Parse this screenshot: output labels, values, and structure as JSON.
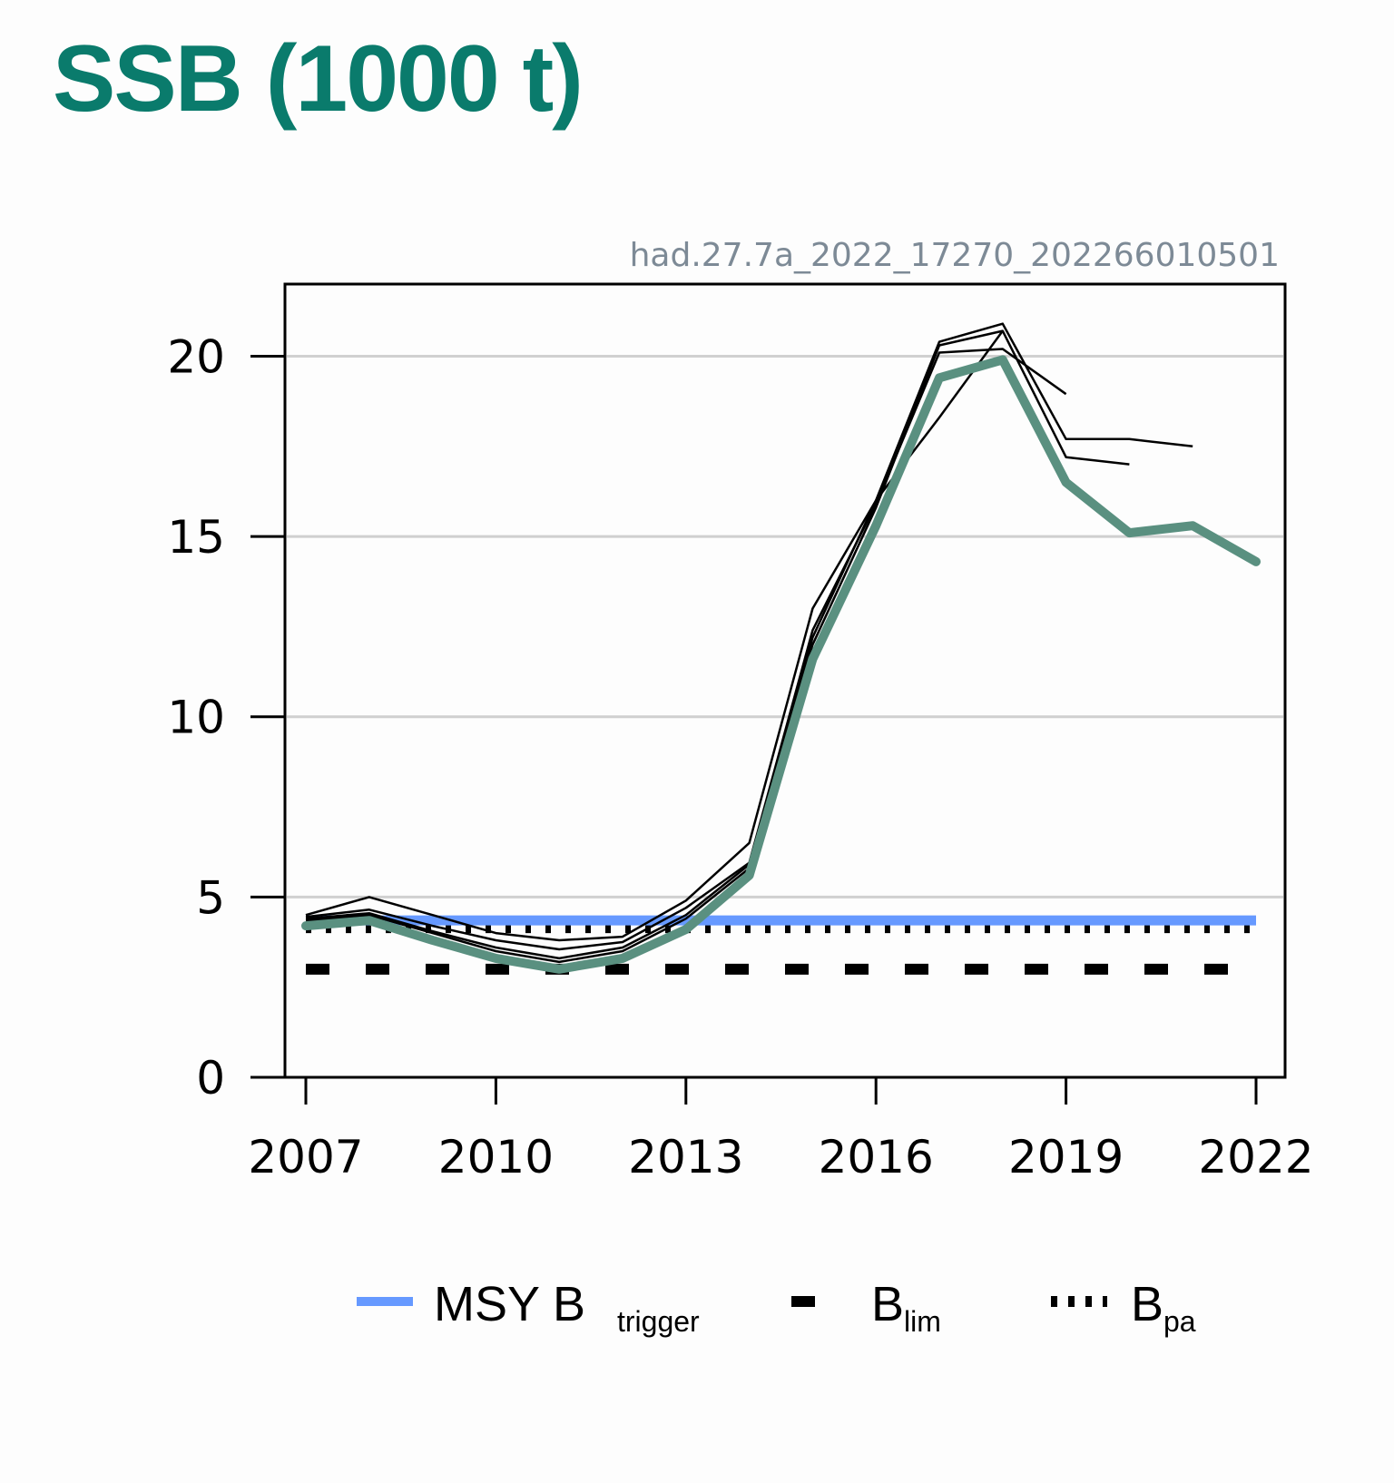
{
  "page": {
    "title": "SSB (1000 t)"
  },
  "chart_data": {
    "type": "line",
    "source_label": "had.27.7a_2022_17270_202266010501",
    "xlim": [
      2007,
      2022
    ],
    "ylim": [
      0,
      22
    ],
    "x_ticks": [
      2007,
      2010,
      2013,
      2016,
      2019,
      2022
    ],
    "y_ticks": [
      0,
      5,
      10,
      15,
      20
    ],
    "grid": "horizontal",
    "legend_placement": "bottom",
    "colors": {
      "current": "#5a9080",
      "retro": "#000000",
      "msy": "#6699ff",
      "ref": "#000000"
    },
    "reference_lines": [
      {
        "label": "MSY B",
        "sub": "trigger",
        "value": 4.35,
        "style": "solid"
      },
      {
        "label": "B",
        "sub": "lim",
        "value": 3.0,
        "style": "dashed"
      },
      {
        "label": "B",
        "sub": "pa",
        "value": 4.15,
        "style": "dotted"
      }
    ],
    "series": [
      {
        "role": "current",
        "x": [
          2007,
          2008,
          2009,
          2010,
          2011,
          2012,
          2013,
          2014,
          2015,
          2016,
          2017,
          2018,
          2019,
          2020,
          2021,
          2022
        ],
        "values": [
          4.2,
          4.35,
          3.8,
          3.3,
          3.0,
          3.3,
          4.1,
          5.6,
          11.6,
          15.3,
          19.4,
          19.9,
          16.5,
          15.1,
          15.3,
          14.3
        ]
      },
      {
        "role": "retro",
        "x": [
          2007,
          2008,
          2009,
          2010,
          2011,
          2012,
          2013,
          2014,
          2015,
          2016,
          2017,
          2018,
          2019,
          2020,
          2021
        ],
        "values": [
          4.35,
          4.5,
          4.0,
          3.5,
          3.2,
          3.5,
          4.4,
          5.8,
          12.2,
          16.0,
          20.4,
          20.9,
          17.7,
          17.7,
          17.5
        ]
      },
      {
        "role": "retro",
        "x": [
          2007,
          2008,
          2009,
          2010,
          2011,
          2012,
          2013,
          2014,
          2015,
          2016,
          2017,
          2018,
          2019,
          2020
        ],
        "values": [
          4.4,
          4.55,
          4.05,
          3.6,
          3.3,
          3.6,
          4.5,
          5.9,
          12.0,
          15.8,
          20.3,
          20.7,
          17.2,
          17.0
        ]
      },
      {
        "role": "retro",
        "x": [
          2007,
          2008,
          2009,
          2010,
          2011,
          2012,
          2013,
          2014,
          2015,
          2016,
          2017,
          2018,
          2019
        ],
        "values": [
          4.45,
          4.65,
          4.2,
          3.8,
          3.55,
          3.75,
          4.7,
          5.95,
          12.4,
          15.9,
          20.1,
          20.2,
          18.95
        ]
      },
      {
        "role": "retro",
        "x": [
          2007,
          2008,
          2009,
          2010,
          2011,
          2012,
          2013,
          2014,
          2015,
          2016,
          2017,
          2018
        ],
        "values": [
          4.5,
          5.0,
          4.5,
          4.0,
          3.8,
          3.9,
          4.9,
          6.5,
          13.0,
          16.0,
          18.3,
          20.7
        ]
      }
    ]
  }
}
